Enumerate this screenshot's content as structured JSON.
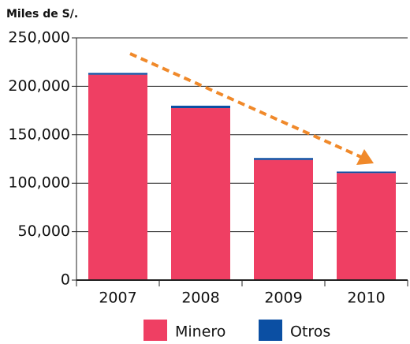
{
  "chart_data": {
    "type": "stacked_bar",
    "y_axis_label": "Miles de S/.",
    "categories": [
      "2007",
      "2008",
      "2009",
      "2010"
    ],
    "series": [
      {
        "name": "Minero",
        "color": "#ef3f63",
        "values": [
          212000,
          177500,
          124000,
          110500
        ]
      },
      {
        "name": "Otros",
        "color": "#0b4fa3",
        "values": [
          1800,
          2500,
          2000,
          1500
        ]
      }
    ],
    "ylim": [
      0,
      250000
    ],
    "yticks": [
      0,
      {
        "value": 50000,
        "label": "50,000"
      },
      {
        "value": 100000,
        "label": "100,000"
      },
      {
        "value": 150000,
        "label": "150,000"
      },
      {
        "value": 200000,
        "label": "200,000"
      },
      {
        "value": 250000,
        "label": "250,000"
      }
    ],
    "grid": true,
    "legend": "bottom"
  }
}
